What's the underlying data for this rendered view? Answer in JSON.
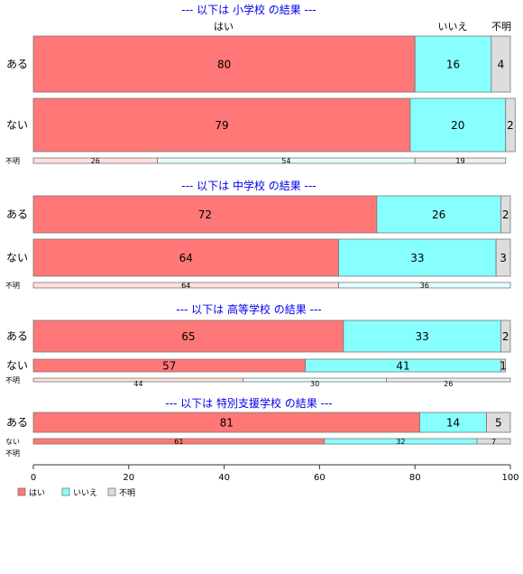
{
  "colors": {
    "yes": "#ff7777",
    "no": "#88ffff",
    "unknown": "#dddddd",
    "title": "#0000ee"
  },
  "legend": [
    "はい",
    "いいえ",
    "不明"
  ],
  "column_headers": [
    "はい",
    "いいえ",
    "不明"
  ],
  "chart_data": {
    "type": "bar",
    "orientation": "horizontal-stacked-percent",
    "xlim": [
      0,
      100
    ],
    "xticks": [
      "0",
      "20",
      "40",
      "60",
      "80",
      "100"
    ],
    "series_names": [
      "はい",
      "いいえ",
      "不明"
    ],
    "panels": [
      {
        "title": "--- 以下は 小学校 の結果 ---",
        "rows": [
          {
            "label": "ある",
            "values": [
              80,
              16,
              4
            ]
          },
          {
            "label": "ない",
            "values": [
              79,
              20,
              2
            ]
          },
          {
            "label": "不明",
            "values": [
              26,
              54,
              19
            ]
          }
        ]
      },
      {
        "title": "--- 以下は 中学校 の結果 ---",
        "rows": [
          {
            "label": "ある",
            "values": [
              72,
              26,
              2
            ]
          },
          {
            "label": "ない",
            "values": [
              64,
              33,
              3
            ]
          },
          {
            "label": "不明",
            "values": [
              64,
              36,
              0
            ]
          }
        ]
      },
      {
        "title": "--- 以下は 高等学校 の結果 ---",
        "rows": [
          {
            "label": "ある",
            "values": [
              65,
              33,
              2
            ]
          },
          {
            "label": "ない",
            "values": [
              57,
              41,
              1
            ]
          },
          {
            "label": "不明",
            "values": [
              44,
              30,
              26
            ]
          }
        ]
      },
      {
        "title": "--- 以下は 特別支援学校 の結果 ---",
        "rows": [
          {
            "label": "ある",
            "values": [
              81,
              14,
              5
            ]
          },
          {
            "label": "ない",
            "values": [
              61,
              32,
              7
            ]
          },
          {
            "label": "不明",
            "values": []
          }
        ]
      }
    ]
  }
}
